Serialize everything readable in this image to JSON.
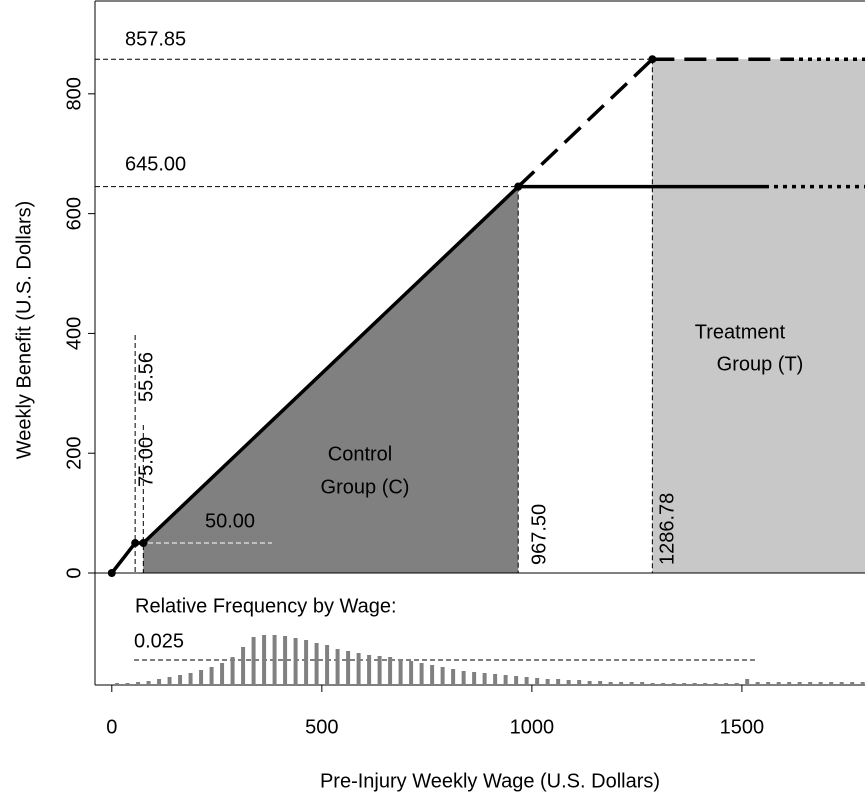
{
  "chart_data": [
    {
      "type": "line",
      "y_label": "Weekly Benefit (U.S. Dollars)",
      "xlim": [
        -40,
        1793
      ],
      "ylim": [
        0,
        955
      ],
      "yticks": [
        0,
        200,
        400,
        600,
        800
      ],
      "series": [
        {
          "x": [
            0,
            55.56,
            75,
            967.5
          ],
          "values": [
            0,
            50,
            50,
            645
          ],
          "color": "#000000",
          "dash": "solid"
        },
        {
          "x": [
            967.5,
            1286.78
          ],
          "values": [
            645,
            857.85
          ],
          "color": "#000000",
          "dash": "dashed"
        }
      ],
      "hlines": [
        857.85,
        {
          "value": 645,
          "label": "645.00"
        },
        {
          "value": 50,
          "label": "50.00"
        }
      ],
      "vlines": [
        55.56,
        {
          "value": 75,
          "label": "75.00"
        },
        {
          "value": 967.5,
          "label": "967.50"
        },
        1286.78
      ],
      "region_labels": [
        [
          "Control",
          "Group (C)"
        ],
        [
          "Treatment",
          "Group (T)"
        ]
      ],
      "region_colors": [
        "#808080",
        "#c8c8c8"
      ]
    },
    {
      "type": "histogram",
      "title": "Relative Frequency by Wage:",
      "x_label": "Pre-Injury Weekly Wage (U.S. Dollars)",
      "xlim": [
        -40,
        1793
      ],
      "ylim": [
        0,
        0.112
      ],
      "xticks": [
        0,
        500,
        1000,
        1500
      ],
      "reference": 0.025,
      "color": "#808080",
      "bins": [
        0,
        25,
        50,
        75,
        100,
        125,
        150,
        175,
        200,
        225,
        250,
        275,
        300,
        325,
        350,
        375,
        400,
        425,
        450,
        475,
        500,
        525,
        550,
        575,
        600,
        625,
        650,
        675,
        700,
        725,
        750,
        775,
        800,
        825,
        850,
        875,
        900,
        925,
        950,
        975,
        1000,
        1025,
        1050,
        1075,
        1100,
        1125,
        1150,
        1175,
        1200,
        1225,
        1250,
        1275,
        1300,
        1325,
        1350,
        1375,
        1400,
        1425,
        1450,
        1475,
        1500,
        1525,
        1550,
        1575,
        1600,
        1625,
        1650,
        1675,
        1700,
        1725,
        1750,
        1775,
        1800
      ],
      "values": [
        0.002,
        0.002,
        0.003,
        0.004,
        0.006,
        0.008,
        0.01,
        0.012,
        0.015,
        0.018,
        0.022,
        0.028,
        0.038,
        0.048,
        0.05,
        0.05,
        0.049,
        0.047,
        0.045,
        0.042,
        0.04,
        0.036,
        0.034,
        0.032,
        0.03,
        0.029,
        0.028,
        0.026,
        0.024,
        0.022,
        0.02,
        0.018,
        0.016,
        0.014,
        0.013,
        0.012,
        0.011,
        0.01,
        0.009,
        0.008,
        0.007,
        0.006,
        0.006,
        0.005,
        0.005,
        0.004,
        0.004,
        0.003,
        0.003,
        0.003,
        0.003,
        0.002,
        0.002,
        0.002,
        0.002,
        0.002,
        0.002,
        0.002,
        0.002,
        0.002,
        0.006,
        0.003,
        0.003,
        0.003,
        0.003,
        0.003,
        0.003,
        0.003,
        0.003,
        0.003,
        0.003,
        0.003
      ]
    }
  ]
}
